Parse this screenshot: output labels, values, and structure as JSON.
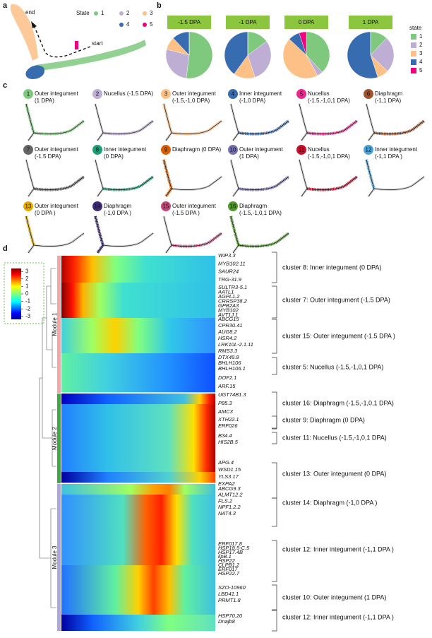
{
  "panel_labels": [
    "a",
    "b",
    "c",
    "d"
  ],
  "panel_a": {
    "end_label": "end",
    "start_label": "start",
    "legend_title": "State",
    "states": [
      {
        "label": "1",
        "color": "#7fc97f"
      },
      {
        "label": "2",
        "color": "#beaed4"
      },
      {
        "label": "3",
        "color": "#fdc086"
      },
      {
        "label": "4",
        "color": "#386cb0"
      },
      {
        "label": "5",
        "color": "#f0027f"
      }
    ]
  },
  "chart_data": [
    {
      "type": "pie",
      "title": "-1.5 DPA",
      "values": [
        52,
        27,
        9,
        12,
        0
      ]
    },
    {
      "type": "pie",
      "title": "-1 DPA",
      "values": [
        15,
        30,
        15,
        40,
        0
      ]
    },
    {
      "type": "pie",
      "title": "0 DPA",
      "values": [
        38,
        4,
        45,
        8,
        5
      ]
    },
    {
      "type": "pie",
      "title": "1 DPA",
      "values": [
        12,
        25,
        8,
        55,
        0
      ]
    }
  ],
  "pie_legend": {
    "title": "state",
    "labels": [
      "1",
      "2",
      "3",
      "4",
      "5"
    ],
    "colors": [
      "#7fc97f",
      "#beaed4",
      "#fdc086",
      "#386cb0",
      "#f0027f"
    ]
  },
  "panel_c": {
    "clusters": [
      {
        "number": "1",
        "lines": [
          "Outer integument",
          "(1 DPA)"
        ],
        "color": "#7fc97f"
      },
      {
        "number": "2",
        "lines": [
          "Nucellus (-1.5 DPA)"
        ],
        "color": "#beaed4"
      },
      {
        "number": "3",
        "lines": [
          "Outer integument",
          "(-1.5,-1,0 DPA)"
        ],
        "color": "#fdc086"
      },
      {
        "number": "4",
        "lines": [
          "Inner integument",
          "(-1,0 DPA)"
        ],
        "color": "#386cb0"
      },
      {
        "number": "5",
        "lines": [
          "Nucellus",
          "(-1.5,-1,0,1 DPA)"
        ],
        "color": "#e7298a"
      },
      {
        "number": "6",
        "lines": [
          "Diaphragm",
          "(-1,1 DPA)"
        ],
        "color": "#a0522d"
      },
      {
        "number": "7",
        "lines": [
          "Outer integument",
          "(-1.5 DPA)"
        ],
        "color": "#666666"
      },
      {
        "number": "8",
        "lines": [
          "Inner integument",
          "(0 DPA)"
        ],
        "color": "#1b9e77"
      },
      {
        "number": "9",
        "lines": [
          "Diaphragm (0 DPA)"
        ],
        "color": "#d95f02"
      },
      {
        "number": "10",
        "lines": [
          "Outer integument",
          "(1 DPA)"
        ],
        "color": "#7570b3"
      },
      {
        "number": "11",
        "lines": [
          "Nucellus",
          "(-1.5,-1,0,1 DPA)"
        ],
        "color": "#c8102e"
      },
      {
        "number": "12",
        "lines": [
          "Inner integument",
          "(-1,1 DPA )"
        ],
        "color": "#4ba3d9"
      },
      {
        "number": "13",
        "lines": [
          "Outer integument",
          "(0 DPA )"
        ],
        "color": "#e6ab02"
      },
      {
        "number": "14",
        "lines": [
          "Diaphragm",
          "(-1,0 DPA )"
        ],
        "color": "#3f2a7a"
      },
      {
        "number": "15",
        "lines": [
          "Outer integument",
          "(-1.5 DPA )"
        ],
        "color": "#c2477a"
      },
      {
        "number": "16",
        "lines": [
          "Diaphragm",
          "(-1.5,-1,0,1 DPA)"
        ],
        "color": "#4e9a2a"
      }
    ]
  },
  "panel_d": {
    "colorbar": {
      "lim": [
        -3.4,
        3.4
      ],
      "ticks": [
        3,
        2,
        1,
        0,
        -1,
        -2,
        -3
      ]
    },
    "modules": [
      "Module 1",
      "Module 2",
      "Module 3"
    ],
    "clusters": [
      {
        "label": "cluster 8: Inner integument (0 DPA)",
        "genes": [
          "WIP3.3",
          "MYB102.11",
          "SAUR24",
          "TRG-31.9"
        ]
      },
      {
        "label": "cluster 7: Outer integument (-1.5 DPA)",
        "genes": [
          "SULTR3-5.1",
          "AATL1",
          "AGPL1.2",
          "CRRSP38.2",
          "GPB2A3",
          "MYB102",
          "AVT1J.1"
        ]
      },
      {
        "label": "cluster 15: Outer integument (-1.5 DPA )",
        "genes": [
          "ABCG15",
          "CPR30.41",
          "AUG8.2",
          "HSR4.2",
          "LRK10L-2.1.11",
          "RMS3.3"
        ]
      },
      {
        "label": "cluster 5: Nucellus (-1.5,-1,0,1 DPA)",
        "genes": [
          "DTX49.8",
          "BHLH106",
          "BHLH106.1"
        ]
      },
      {
        "label": "cluster 16: Diaphragm (-1.5,-1,0,1 DPA)",
        "genes": [
          "DOF2.1",
          "ARF.15",
          "UGT74B1.3",
          "P85.3",
          "AMC3"
        ]
      },
      {
        "label": "cluster 9: Diaphragm (0 DPA)",
        "genes": [
          "XTH22.1",
          "ERF026"
        ]
      },
      {
        "label": "cluster 11: Nucellus (-1.5,-1,0,1 DPA)",
        "genes": [
          "B34.4",
          "HIS2B.5"
        ]
      },
      {
        "label": "cluster 13: Outer integument (0 DPA)",
        "genes": [
          "APG.4",
          "WSD1.15",
          "YLS3.17",
          "EXPA2"
        ]
      },
      {
        "label": "cluster 14: Diaphragm (-1,0 DPA )",
        "genes": [
          "ABCG9.3",
          "ALMT12.2",
          "FLS.2",
          "NPF1.2.2",
          "NAT4.3"
        ]
      },
      {
        "label": "cluster 12: Inner integument (-1,1 DPA )",
        "genes": [
          "ERF017.8",
          "HSP18.5-C.5",
          "HSP17.4B",
          "lipB.1",
          "HSP22",
          "CLPB1.2",
          "ERF017",
          "HSP22.7"
        ]
      },
      {
        "label": "cluster 10: Outer integument (1 DPA)",
        "genes": [
          "SZO-10960",
          "LBD41.1",
          "PRMT1.8"
        ]
      },
      {
        "label": "cluster 12: Inner integument (-1,1 DPA )",
        "genes": [
          "HSP70.20",
          "Dnajb8"
        ]
      }
    ]
  }
}
